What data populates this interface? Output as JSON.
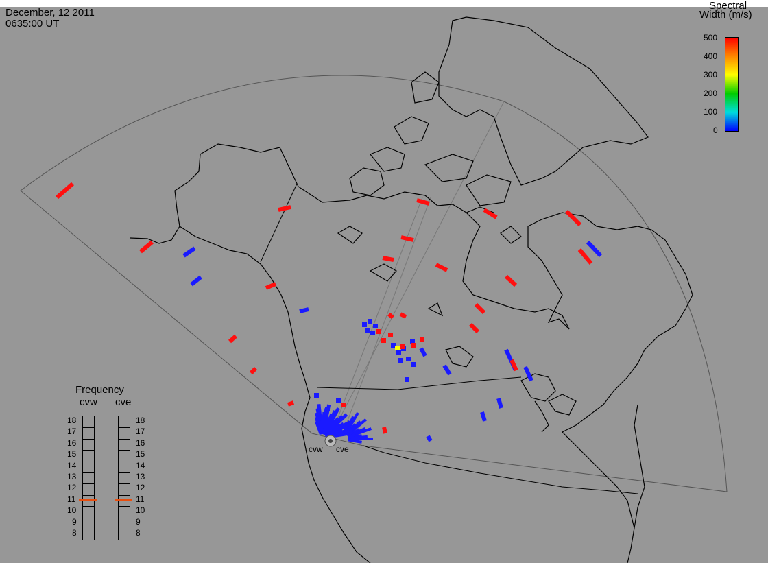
{
  "header": {
    "date": "December, 12 2011",
    "time": "0635:00 UT"
  },
  "colorbar": {
    "title_line1": "Spectral",
    "title_line2": "Width (m/s)",
    "ticks": [
      "500",
      "400",
      "300",
      "200",
      "100",
      "0"
    ],
    "colors": [
      "#ff0000",
      "#ff9900",
      "#ffff00",
      "#00dd00",
      "#00dddd",
      "#0000ff"
    ]
  },
  "radars": [
    {
      "code": "cvw",
      "label": "cvw"
    },
    {
      "code": "cve",
      "label": "cve"
    }
  ],
  "frequency_panel": {
    "title": "Frequency",
    "columns": [
      "cvw",
      "cve"
    ],
    "scale_labels": [
      "18",
      "17",
      "16",
      "15",
      "14",
      "13",
      "12",
      "11",
      "10",
      "9",
      "8"
    ],
    "current_mhz": {
      "cvw": 10.8,
      "cve": 10.8
    },
    "marker_color": "#e84e0e"
  },
  "colors": {
    "background": "#979797",
    "coastline": "#000000",
    "fov_outline": "#555555",
    "low_width": "#1a1aff",
    "high_width": "#ff0f0f"
  }
}
